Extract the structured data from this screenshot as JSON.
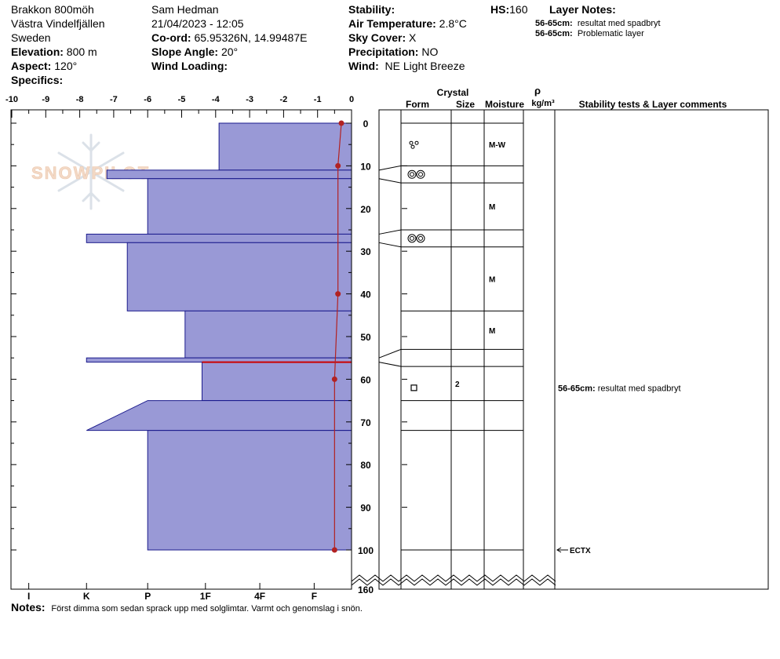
{
  "header": {
    "location": "Brakkon 800möh",
    "area": "Västra Vindelfjällen",
    "country": "Sweden",
    "elevation_label": "Elevation:",
    "elevation_value": "800 m",
    "aspect_label": "Aspect:",
    "aspect_value": "120°",
    "specifics_label": "Specifics:",
    "observer": "Sam Hedman",
    "datetime": "21/04/2023 - 12:05",
    "coord_label": "Co-ord:",
    "coord_value": "65.95326N, 14.99487E",
    "slope_label": "Slope Angle:",
    "slope_value": "20°",
    "wind_loading_label": "Wind Loading:",
    "stability_label": "Stability:",
    "air_temp_label": "Air Temperature:",
    "air_temp_value": "2.8°C",
    "sky_label": "Sky Cover:",
    "sky_value": "X",
    "precip_label": "Precipitation:",
    "precip_value": "NO",
    "wind_label": "Wind:",
    "wind_value": "NE Light Breeze",
    "hs_label": "HS:",
    "hs_value": "160",
    "layer_notes_label": "Layer Notes:",
    "layer_notes": [
      {
        "range": "56-65cm:",
        "text": "resultat med spadbryt"
      },
      {
        "range": "56-65cm:",
        "text": "Problematic layer"
      }
    ]
  },
  "columns": {
    "crystal": "Crystal",
    "form": "Form",
    "size": "Size",
    "moisture": "Moisture",
    "rho": "ρ",
    "density_unit": "kg/m³",
    "comments": "Stability tests & Layer comments"
  },
  "watermark": "SNOWPILOT",
  "notes_label": "Notes:",
  "notes_text": "Först dimma som sedan sprack upp med solglimtar. Varmt och genomslag i snön.",
  "chart_data": {
    "type": "snow-profile",
    "depth_unit": "cm",
    "depth_ticks": [
      0,
      10,
      20,
      30,
      40,
      50,
      60,
      70,
      80,
      90,
      100
    ],
    "depth_bottom_label": "160",
    "temperature_ticks": [
      -10,
      -9,
      -8,
      -7,
      -6,
      -5,
      -4,
      -3,
      -2,
      -1,
      0
    ],
    "hardness_ticks": [
      {
        "label": "I",
        "temp": -9.5
      },
      {
        "label": "K",
        "temp": -7.8
      },
      {
        "label": "P",
        "temp": -6.0
      },
      {
        "label": "1F",
        "temp": -4.3
      },
      {
        "label": "4F",
        "temp": -2.7
      },
      {
        "label": "F",
        "temp": -1.1
      }
    ],
    "hardness_profile": [
      {
        "top": 0,
        "bottom": 11,
        "hardness": -3.9
      },
      {
        "top": 11,
        "bottom": 13,
        "hardness": -7.2
      },
      {
        "top": 13,
        "bottom": 26,
        "hardness": -6.0
      },
      {
        "top": 26,
        "bottom": 28,
        "hardness": -7.8
      },
      {
        "top": 28,
        "bottom": 44,
        "hardness": -6.6
      },
      {
        "top": 44,
        "bottom": 55,
        "hardness": -4.9
      },
      {
        "top": 55,
        "bottom": 56,
        "hardness": -7.8
      },
      {
        "top": 56,
        "bottom": 65,
        "hardness": -4.4
      },
      {
        "top": 65,
        "bottom": 72,
        "hardness_top": -6.0,
        "hardness_bottom": -7.8
      },
      {
        "top": 72,
        "bottom": 100,
        "hardness": -6.0
      }
    ],
    "weak_layer_depth": 56,
    "temperature_profile": [
      {
        "depth": 0,
        "temp": -0.3
      },
      {
        "depth": 10,
        "temp": -0.4
      },
      {
        "depth": 40,
        "temp": -0.4
      },
      {
        "depth": 60,
        "temp": -0.5
      },
      {
        "depth": 100,
        "temp": -0.5
      }
    ],
    "layer_boundaries": [
      0,
      10,
      14,
      25,
      29,
      44,
      53,
      57,
      65,
      72,
      100
    ],
    "layers": [
      {
        "top": 0,
        "bottom": 10,
        "form": "rounded-grains",
        "size": "",
        "moisture": "M-W"
      },
      {
        "top": 10,
        "bottom": 14,
        "form": "melt-forms",
        "size": "",
        "moisture": ""
      },
      {
        "top": 14,
        "bottom": 25,
        "form": "",
        "size": "",
        "moisture": "M"
      },
      {
        "top": 25,
        "bottom": 29,
        "form": "melt-forms",
        "size": "",
        "moisture": ""
      },
      {
        "top": 29,
        "bottom": 44,
        "form": "",
        "size": "",
        "moisture": "M"
      },
      {
        "top": 44,
        "bottom": 53,
        "form": "",
        "size": "",
        "moisture": "M"
      },
      {
        "top": 53,
        "bottom": 57,
        "form": "",
        "size": "",
        "moisture": ""
      },
      {
        "top": 57,
        "bottom": 65,
        "form": "faceted-crystals",
        "size": "2",
        "moisture": ""
      },
      {
        "top": 65,
        "bottom": 72,
        "form": "",
        "size": "",
        "moisture": ""
      },
      {
        "top": 72,
        "bottom": 100,
        "form": "",
        "size": "",
        "moisture": ""
      }
    ],
    "comments": [
      {
        "depth": 60,
        "range": "56-65cm:",
        "text": "resultat med spadbryt"
      }
    ],
    "stability_tests": [
      {
        "depth": 100,
        "label": "ECTX"
      }
    ]
  }
}
